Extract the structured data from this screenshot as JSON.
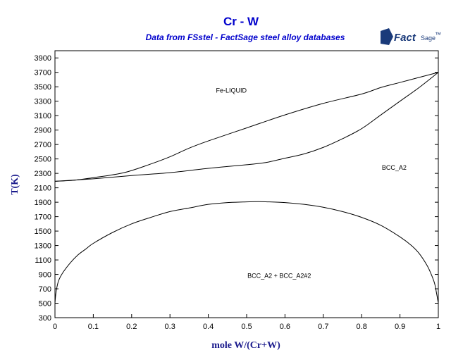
{
  "chart_data": {
    "type": "line",
    "title": "Cr - W",
    "subtitle": "Data from FSstel - FactSage steel alloy databases",
    "xlabel": "mole W/(Cr+W)",
    "ylabel": "T(K)",
    "xlim": [
      0,
      1
    ],
    "ylim": [
      300,
      4000
    ],
    "x_ticks": [
      0,
      0.1,
      0.2,
      0.3,
      0.4,
      0.5,
      0.6,
      0.7,
      0.8,
      0.9,
      1
    ],
    "x_tick_labels": [
      "0",
      "0.1",
      "0.2",
      "0.3",
      "0.4",
      "0.5",
      "0.6",
      "0.7",
      "0.8",
      "0.9",
      "1"
    ],
    "y_ticks": [
      300,
      500,
      700,
      900,
      1100,
      1300,
      1500,
      1700,
      1900,
      2100,
      2300,
      2500,
      2700,
      2900,
      3100,
      3300,
      3500,
      3700,
      3900
    ],
    "y_tick_labels": [
      "300",
      "500",
      "700",
      "900",
      "1100",
      "1300",
      "1500",
      "1700",
      "1900",
      "2100",
      "2300",
      "2500",
      "2700",
      "2900",
      "3100",
      "3300",
      "3500",
      "3700",
      "3900"
    ],
    "grid": false,
    "series": [
      {
        "values": [
          [
            0,
            2190
          ],
          [
            0.05,
            2205
          ],
          [
            0.1,
            2240
          ],
          [
            0.18,
            2310
          ],
          [
            0.25,
            2430
          ],
          [
            0.3,
            2530
          ],
          [
            0.35,
            2650
          ],
          [
            0.4,
            2750
          ],
          [
            0.5,
            2930
          ],
          [
            0.6,
            3110
          ],
          [
            0.7,
            3270
          ],
          [
            0.8,
            3400
          ],
          [
            0.85,
            3490
          ],
          [
            0.9,
            3560
          ],
          [
            0.95,
            3630
          ],
          [
            1,
            3700
          ]
        ]
      },
      {
        "values": [
          [
            0,
            2190
          ],
          [
            0.1,
            2225
          ],
          [
            0.2,
            2270
          ],
          [
            0.3,
            2310
          ],
          [
            0.4,
            2370
          ],
          [
            0.5,
            2420
          ],
          [
            0.55,
            2450
          ],
          [
            0.6,
            2510
          ],
          [
            0.65,
            2570
          ],
          [
            0.7,
            2660
          ],
          [
            0.75,
            2780
          ],
          [
            0.8,
            2920
          ],
          [
            0.85,
            3110
          ],
          [
            0.9,
            3300
          ],
          [
            0.95,
            3490
          ],
          [
            1,
            3700
          ]
        ]
      },
      {
        "values": [
          [
            0,
            500
          ],
          [
            0.002,
            620
          ],
          [
            0.005,
            720
          ],
          [
            0.01,
            820
          ],
          [
            0.02,
            920
          ],
          [
            0.04,
            1060
          ],
          [
            0.06,
            1170
          ],
          [
            0.08,
            1250
          ],
          [
            0.1,
            1330
          ],
          [
            0.15,
            1480
          ],
          [
            0.2,
            1600
          ],
          [
            0.25,
            1690
          ],
          [
            0.3,
            1770
          ],
          [
            0.35,
            1820
          ],
          [
            0.4,
            1870
          ],
          [
            0.45,
            1895
          ],
          [
            0.5,
            1905
          ],
          [
            0.53,
            1908
          ],
          [
            0.55,
            1906
          ],
          [
            0.6,
            1895
          ],
          [
            0.65,
            1870
          ],
          [
            0.7,
            1830
          ],
          [
            0.75,
            1770
          ],
          [
            0.8,
            1690
          ],
          [
            0.85,
            1580
          ],
          [
            0.9,
            1420
          ],
          [
            0.93,
            1300
          ],
          [
            0.95,
            1190
          ],
          [
            0.97,
            1030
          ],
          [
            0.98,
            920
          ],
          [
            0.99,
            780
          ],
          [
            0.995,
            650
          ],
          [
            1,
            500
          ]
        ]
      }
    ],
    "annotations": [
      {
        "text": "Fe-LIQUID",
        "x": 0.46,
        "y": 3450
      },
      {
        "text": "BCC_A2",
        "x": 0.885,
        "y": 2380
      },
      {
        "text": "BCC_A2 + BCC_A2#2",
        "x": 0.585,
        "y": 880
      }
    ],
    "line_color": "#000000",
    "text_color": "#0000cc"
  },
  "logo": {
    "main": "Fact",
    "suffix": "Sage",
    "tm": "™"
  }
}
